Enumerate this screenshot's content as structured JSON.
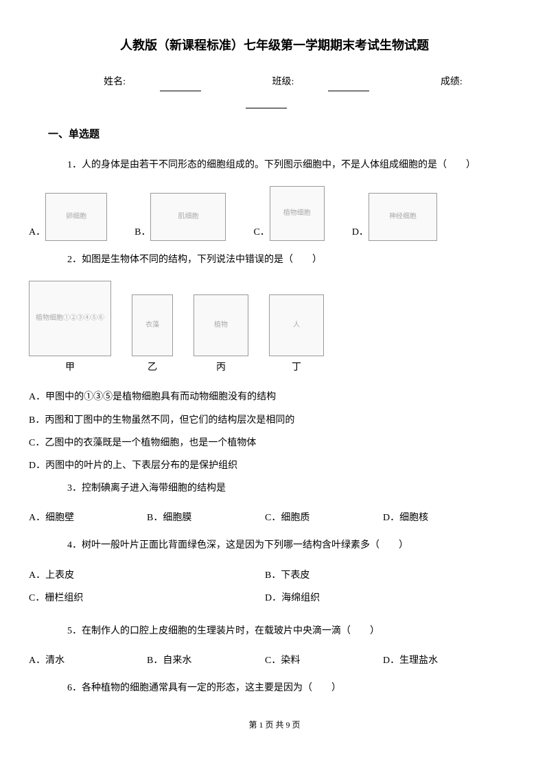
{
  "title": "人教版（新课程标准）七年级第一学期期末考试生物试题",
  "info": {
    "name_label": "姓名:",
    "class_label": "班级:",
    "score_label": "成绩:"
  },
  "section1_header": "一、单选题",
  "q1": {
    "text": "1．人的身体是由若干不同形态的细胞组成的。下列图示细胞中，不是人体组成细胞的是（　　）",
    "optA": "A．",
    "optB": "B．",
    "optC": "C．",
    "optD": "D．",
    "imgA_alt": "卵细胞",
    "imgB_alt": "肌细胞",
    "imgC_alt": "植物细胞",
    "imgD_alt": "神经细胞"
  },
  "q2": {
    "text": "2．如图是生物体不同的结构，下列说法中错误的是（　　）",
    "label1": "甲",
    "label2": "乙",
    "label3": "丙",
    "label4": "丁",
    "img1_alt": "植物细胞①②③④⑤⑥",
    "img2_alt": "衣藻",
    "img3_alt": "植物",
    "img4_alt": "人",
    "optA": "A．甲图中的①③⑤是植物细胞具有而动物细胞没有的结构",
    "optB": "B．丙图和丁图中的生物虽然不同，但它们的结构层次是相同的",
    "optC": "C．乙图中的衣藻既是一个植物细胞，也是一个植物体",
    "optD": "D．丙图中的叶片的上、下表层分布的是保护组织"
  },
  "q3": {
    "text": "3．控制碘离子进入海带细胞的结构是",
    "optA": "A．细胞壁",
    "optB": "B．细胞膜",
    "optC": "C．细胞质",
    "optD": "D．细胞核"
  },
  "q4": {
    "text": "4．树叶一般叶片正面比背面绿色深，这是因为下列哪一结构含叶绿素多（　　）",
    "optA": "A．上表皮",
    "optB": "B．下表皮",
    "optC": "C．栅栏组织",
    "optD": "D．海绵组织"
  },
  "q5": {
    "text": "5．在制作人的口腔上皮细胞的生理装片时，在载玻片中央滴一滴（　　）",
    "optA": "A．清水",
    "optB": "B．自来水",
    "optC": "C．染料",
    "optD": "D．生理盐水"
  },
  "q6": {
    "text": "6．各种植物的细胞通常具有一定的形态，这主要是因为（　　）"
  },
  "footer": "第 1 页 共 9 页"
}
